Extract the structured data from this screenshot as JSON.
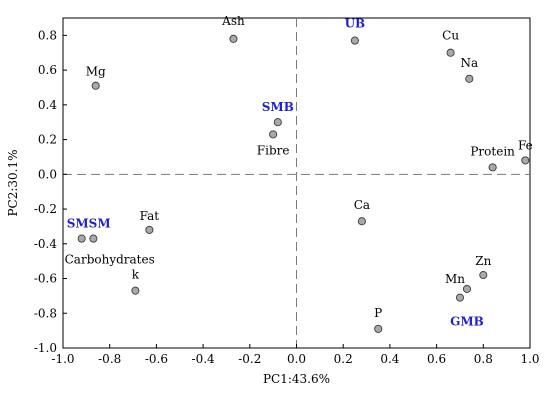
{
  "chart_data": {
    "type": "scatter",
    "title": "",
    "xlabel": "PC1:43.6%",
    "ylabel": "PC2:30.1%",
    "xlim": [
      -1.0,
      1.0
    ],
    "ylim": [
      -1.0,
      0.9
    ],
    "x_ticks": [
      -1.0,
      -0.8,
      -0.6,
      -0.4,
      -0.2,
      0.0,
      0.2,
      0.4,
      0.6,
      0.8,
      1.0
    ],
    "x_tick_labels": [
      "-1.0",
      "-0.8",
      "-0.6",
      "-0.4",
      "-0.2",
      "0.0",
      "0.2",
      "0.4",
      "0.6",
      "0.8",
      "1.0"
    ],
    "y_ticks": [
      -1.0,
      -0.8,
      -0.6,
      -0.4,
      -0.2,
      0.0,
      0.2,
      0.4,
      0.6,
      0.8
    ],
    "y_tick_labels": [
      "-1.0",
      "-0.8",
      "-0.6",
      "-0.4",
      "-0.2",
      "0.0",
      "0.2",
      "0.4",
      "0.6",
      "0.8"
    ],
    "grid": false,
    "reference_lines": {
      "x": 0.0,
      "y": 0.0,
      "style": "dashed"
    },
    "marker_color": "#a9a9a9",
    "label_color": "#000000",
    "highlight_color": "#1f1fd6",
    "points": [
      {
        "id": "ash",
        "x": -0.27,
        "y": 0.78
      },
      {
        "id": "mg",
        "x": -0.86,
        "y": 0.51
      },
      {
        "id": "ub",
        "x": 0.25,
        "y": 0.77
      },
      {
        "id": "cu",
        "x": 0.66,
        "y": 0.7
      },
      {
        "id": "na",
        "x": 0.74,
        "y": 0.55
      },
      {
        "id": "smb-1",
        "x": -0.08,
        "y": 0.3
      },
      {
        "id": "fibre",
        "x": -0.1,
        "y": 0.23
      },
      {
        "id": "protein",
        "x": 0.84,
        "y": 0.04
      },
      {
        "id": "fe",
        "x": 0.98,
        "y": 0.08
      },
      {
        "id": "fat",
        "x": -0.63,
        "y": -0.32
      },
      {
        "id": "smsm-1",
        "x": -0.92,
        "y": -0.37
      },
      {
        "id": "smsm-2",
        "x": -0.87,
        "y": -0.37
      },
      {
        "id": "ca",
        "x": 0.28,
        "y": -0.27
      },
      {
        "id": "k",
        "x": -0.69,
        "y": -0.67
      },
      {
        "id": "zn",
        "x": 0.8,
        "y": -0.58
      },
      {
        "id": "mn",
        "x": 0.73,
        "y": -0.66
      },
      {
        "id": "gmb-1",
        "x": 0.7,
        "y": -0.71
      },
      {
        "id": "p",
        "x": 0.35,
        "y": -0.89
      }
    ],
    "labels": [
      {
        "text": "Ash",
        "x": -0.27,
        "y": 0.78,
        "highlight": false,
        "anchor": "middle",
        "dy": -14
      },
      {
        "text": "Mg",
        "x": -0.86,
        "y": 0.51,
        "highlight": false,
        "anchor": "middle",
        "dy": -10
      },
      {
        "text": "UB",
        "x": 0.25,
        "y": 0.77,
        "highlight": true,
        "anchor": "middle",
        "dy": -13
      },
      {
        "text": "Cu",
        "x": 0.66,
        "y": 0.7,
        "highlight": false,
        "anchor": "middle",
        "dy": -13
      },
      {
        "text": "Na",
        "x": 0.74,
        "y": 0.55,
        "highlight": false,
        "anchor": "middle",
        "dy": -12
      },
      {
        "text": "SMB",
        "x": -0.08,
        "y": 0.3,
        "highlight": true,
        "anchor": "middle",
        "dy": -11
      },
      {
        "text": "Fibre",
        "x": -0.1,
        "y": 0.23,
        "highlight": false,
        "anchor": "middle",
        "dy": 20
      },
      {
        "text": "Protein",
        "x": 0.84,
        "y": 0.04,
        "highlight": false,
        "anchor": "middle",
        "dy": -12
      },
      {
        "text": "Fe",
        "x": 0.98,
        "y": 0.08,
        "highlight": false,
        "anchor": "middle",
        "dy": -11
      },
      {
        "text": "Fat",
        "x": -0.63,
        "y": -0.32,
        "highlight": false,
        "anchor": "middle",
        "dy": -10
      },
      {
        "text": "SMSM",
        "x": -0.89,
        "y": -0.37,
        "highlight": true,
        "anchor": "middle",
        "dy": -11
      },
      {
        "text": "Carbohydrates",
        "x": -0.8,
        "y": -0.37,
        "highlight": false,
        "anchor": "middle",
        "dy": 25
      },
      {
        "text": "Ca",
        "x": 0.28,
        "y": -0.27,
        "highlight": false,
        "anchor": "middle",
        "dy": -12
      },
      {
        "text": "k",
        "x": -0.69,
        "y": -0.67,
        "highlight": false,
        "anchor": "middle",
        "dy": -12
      },
      {
        "text": "Zn",
        "x": 0.8,
        "y": -0.58,
        "highlight": false,
        "anchor": "middle",
        "dy": -10
      },
      {
        "text": "Mn",
        "x": 0.73,
        "y": -0.66,
        "highlight": false,
        "anchor": "end",
        "dx": -2,
        "dy": -6
      },
      {
        "text": "GMB",
        "x": 0.73,
        "y": -0.71,
        "highlight": true,
        "anchor": "middle",
        "dy": 28
      },
      {
        "text": "P",
        "x": 0.35,
        "y": -0.89,
        "highlight": false,
        "anchor": "middle",
        "dy": -12
      }
    ]
  }
}
